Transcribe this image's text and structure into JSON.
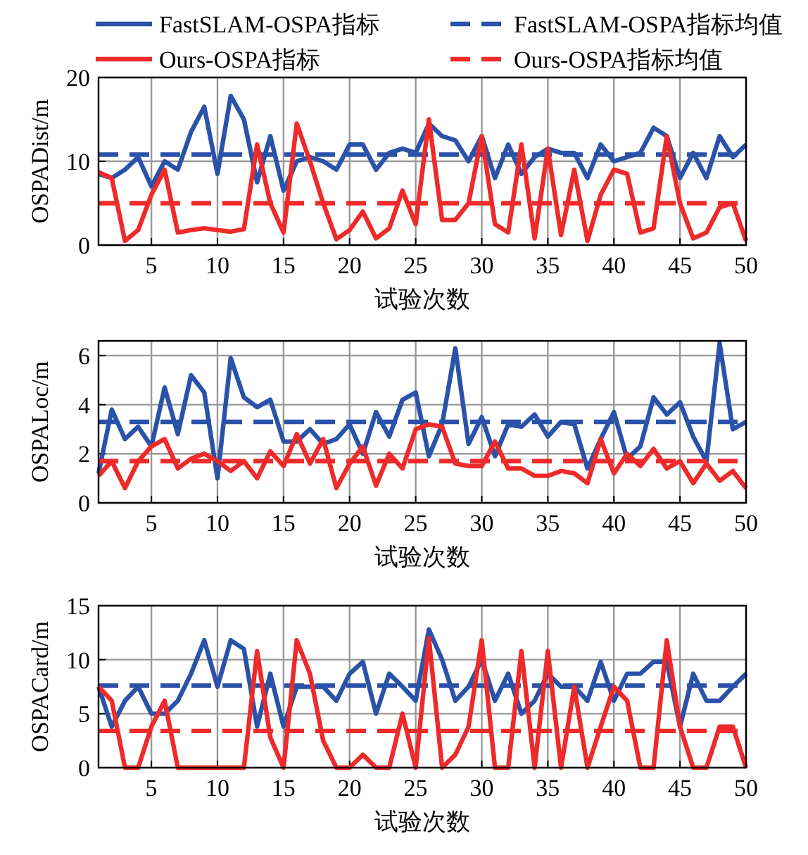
{
  "chart_data": [
    {
      "type": "line",
      "xlabel": "试验次数",
      "ylabel": "OSPADist/m",
      "xlim": [
        1,
        50
      ],
      "xticks": [
        5,
        10,
        15,
        20,
        25,
        30,
        35,
        40,
        45,
        50
      ],
      "ylim": [
        0,
        20
      ],
      "yticks": [
        0,
        10,
        20
      ],
      "grid": true,
      "legend": "top",
      "marker": "none",
      "x": [
        1,
        2,
        3,
        4,
        5,
        6,
        7,
        8,
        9,
        10,
        11,
        12,
        13,
        14,
        15,
        16,
        17,
        18,
        19,
        20,
        21,
        22,
        23,
        24,
        25,
        26,
        27,
        28,
        29,
        30,
        31,
        32,
        33,
        34,
        35,
        36,
        37,
        38,
        39,
        40,
        41,
        42,
        43,
        44,
        45,
        46,
        47,
        48,
        49,
        50
      ],
      "series": [
        {
          "name": "FastSLAM-OSPA指标",
          "color": "#2a52a8",
          "line_style": "solid",
          "values": [
            8.5,
            8,
            9,
            10.5,
            7,
            10,
            9,
            13.5,
            16.5,
            8.5,
            17.8,
            15,
            7.5,
            13,
            6.5,
            10,
            10.5,
            10,
            9,
            12,
            12,
            9,
            11,
            11.5,
            11,
            14.5,
            13,
            12.5,
            10,
            13,
            8,
            12,
            8.5,
            10.5,
            11.5,
            11,
            11,
            8,
            12,
            10,
            10.5,
            11,
            14,
            13,
            8,
            11,
            8,
            13,
            10.5,
            12
          ]
        },
        {
          "name": "FastSLAM-OSPA指标均值",
          "color": "#2a52a8",
          "line_style": "dashed",
          "values": [
            10.8,
            10.8,
            10.8,
            10.8,
            10.8,
            10.8,
            10.8,
            10.8,
            10.8,
            10.8,
            10.8,
            10.8,
            10.8,
            10.8,
            10.8,
            10.8,
            10.8,
            10.8,
            10.8,
            10.8,
            10.8,
            10.8,
            10.8,
            10.8,
            10.8,
            10.8,
            10.8,
            10.8,
            10.8,
            10.8,
            10.8,
            10.8,
            10.8,
            10.8,
            10.8,
            10.8,
            10.8,
            10.8,
            10.8,
            10.8,
            10.8,
            10.8,
            10.8,
            10.8,
            10.8,
            10.8,
            10.8,
            10.8,
            10.8,
            10.8
          ]
        },
        {
          "name": "Ours-OSPA指标",
          "color": "#ee2a2a",
          "line_style": "solid",
          "values": [
            8.7,
            8,
            0.5,
            1.8,
            6,
            9,
            1.5,
            1.8,
            2,
            1.8,
            1.6,
            1.9,
            12,
            5,
            1.5,
            14.5,
            10,
            5,
            0.7,
            1.8,
            4,
            0.8,
            2,
            6.5,
            2.5,
            15,
            3,
            3,
            5,
            13,
            2.5,
            1.5,
            12,
            0.8,
            11.5,
            1.2,
            9,
            0.5,
            6,
            9,
            8.5,
            1.5,
            2,
            13,
            5,
            0.8,
            1.5,
            4.5,
            5,
            0.5
          ]
        },
        {
          "name": "Ours-OSPA指标均值",
          "color": "#ee2a2a",
          "line_style": "dashed",
          "values": [
            5,
            5,
            5,
            5,
            5,
            5,
            5,
            5,
            5,
            5,
            5,
            5,
            5,
            5,
            5,
            5,
            5,
            5,
            5,
            5,
            5,
            5,
            5,
            5,
            5,
            5,
            5,
            5,
            5,
            5,
            5,
            5,
            5,
            5,
            5,
            5,
            5,
            5,
            5,
            5,
            5,
            5,
            5,
            5,
            5,
            5,
            5,
            5,
            5,
            5
          ]
        }
      ]
    },
    {
      "type": "line",
      "xlabel": "试验次数",
      "ylabel": "OSPALoc/m",
      "xlim": [
        1,
        50
      ],
      "xticks": [
        5,
        10,
        15,
        20,
        25,
        30,
        35,
        40,
        45,
        50
      ],
      "ylim": [
        0,
        6.6
      ],
      "yticks": [
        0,
        2,
        4,
        6
      ],
      "grid": true,
      "marker": "none",
      "x": [
        1,
        2,
        3,
        4,
        5,
        6,
        7,
        8,
        9,
        10,
        11,
        12,
        13,
        14,
        15,
        16,
        17,
        18,
        19,
        20,
        21,
        22,
        23,
        24,
        25,
        26,
        27,
        28,
        29,
        30,
        31,
        32,
        33,
        34,
        35,
        36,
        37,
        38,
        39,
        40,
        41,
        42,
        43,
        44,
        45,
        46,
        47,
        48,
        49,
        50
      ],
      "series": [
        {
          "color": "#2a52a8",
          "line_style": "solid",
          "values": [
            1.2,
            3.8,
            2.6,
            3.1,
            2.3,
            4.7,
            2.8,
            5.2,
            4.5,
            1.0,
            5.9,
            4.3,
            3.9,
            4.2,
            2.5,
            2.5,
            3.0,
            2.4,
            2.6,
            3.2,
            2.0,
            3.7,
            2.7,
            4.2,
            4.5,
            1.9,
            3.2,
            6.3,
            2.4,
            3.5,
            1.9,
            3.2,
            3.1,
            3.6,
            2.7,
            3.3,
            3.2,
            1.4,
            2.6,
            3.7,
            1.8,
            2.3,
            4.3,
            3.6,
            4.1,
            2.7,
            1.7,
            6.5,
            3.0,
            3.3
          ]
        },
        {
          "color": "#2a52a8",
          "line_style": "dashed",
          "values": [
            3.3,
            3.3,
            3.3,
            3.3,
            3.3,
            3.3,
            3.3,
            3.3,
            3.3,
            3.3,
            3.3,
            3.3,
            3.3,
            3.3,
            3.3,
            3.3,
            3.3,
            3.3,
            3.3,
            3.3,
            3.3,
            3.3,
            3.3,
            3.3,
            3.3,
            3.3,
            3.3,
            3.3,
            3.3,
            3.3,
            3.3,
            3.3,
            3.3,
            3.3,
            3.3,
            3.3,
            3.3,
            3.3,
            3.3,
            3.3,
            3.3,
            3.3,
            3.3,
            3.3,
            3.3,
            3.3,
            3.3,
            3.3,
            3.3,
            3.3
          ]
        },
        {
          "color": "#ee2a2a",
          "line_style": "solid",
          "values": [
            1.1,
            1.7,
            0.6,
            1.7,
            2.3,
            2.6,
            1.4,
            1.8,
            2.0,
            1.7,
            1.3,
            1.7,
            1.0,
            2.1,
            1.5,
            2.8,
            1.6,
            2.6,
            0.6,
            1.6,
            2.3,
            0.7,
            2.0,
            1.4,
            3.0,
            3.2,
            3.1,
            1.6,
            1.5,
            1.5,
            2.5,
            1.4,
            1.4,
            1.1,
            1.1,
            1.3,
            1.2,
            0.8,
            2.6,
            1.2,
            2.0,
            1.5,
            2.2,
            1.4,
            1.7,
            0.8,
            1.6,
            0.9,
            1.3,
            0.6
          ]
        },
        {
          "color": "#ee2a2a",
          "line_style": "dashed",
          "values": [
            1.7,
            1.7,
            1.7,
            1.7,
            1.7,
            1.7,
            1.7,
            1.7,
            1.7,
            1.7,
            1.7,
            1.7,
            1.7,
            1.7,
            1.7,
            1.7,
            1.7,
            1.7,
            1.7,
            1.7,
            1.7,
            1.7,
            1.7,
            1.7,
            1.7,
            1.7,
            1.7,
            1.7,
            1.7,
            1.7,
            1.7,
            1.7,
            1.7,
            1.7,
            1.7,
            1.7,
            1.7,
            1.7,
            1.7,
            1.7,
            1.7,
            1.7,
            1.7,
            1.7,
            1.7,
            1.7,
            1.7,
            1.7,
            1.7,
            1.7
          ]
        }
      ]
    },
    {
      "type": "line",
      "xlabel": "试验次数",
      "ylabel": "OSPACard/m",
      "xlim": [
        1,
        50
      ],
      "xticks": [
        5,
        10,
        15,
        20,
        25,
        30,
        35,
        40,
        45,
        50
      ],
      "ylim": [
        0,
        15
      ],
      "yticks": [
        0,
        5,
        10,
        15
      ],
      "grid": true,
      "marker": "none",
      "x": [
        1,
        2,
        3,
        4,
        5,
        6,
        7,
        8,
        9,
        10,
        11,
        12,
        13,
        14,
        15,
        16,
        17,
        18,
        19,
        20,
        21,
        22,
        23,
        24,
        25,
        26,
        27,
        28,
        29,
        30,
        31,
        32,
        33,
        34,
        35,
        36,
        37,
        38,
        39,
        40,
        41,
        42,
        43,
        44,
        45,
        46,
        47,
        48,
        49,
        50
      ],
      "series": [
        {
          "color": "#2a52a8",
          "line_style": "solid",
          "values": [
            7.5,
            3.8,
            6.2,
            7.5,
            5,
            5,
            6.2,
            8.7,
            11.8,
            7.5,
            11.8,
            11,
            3.8,
            8.7,
            3.8,
            7.5,
            7.5,
            7.5,
            6.2,
            8.7,
            9.8,
            5,
            8.7,
            7.5,
            6.2,
            12.8,
            10,
            6.2,
            7.5,
            10,
            6.2,
            8.7,
            5,
            6.2,
            8.7,
            7.5,
            7.5,
            6.2,
            9.8,
            6.2,
            8.7,
            8.7,
            9.8,
            9.8,
            3.8,
            8.7,
            6.2,
            6.2,
            7.5,
            8.7
          ]
        },
        {
          "color": "#2a52a8",
          "line_style": "dashed",
          "values": [
            7.6,
            7.6,
            7.6,
            7.6,
            7.6,
            7.6,
            7.6,
            7.6,
            7.6,
            7.6,
            7.6,
            7.6,
            7.6,
            7.6,
            7.6,
            7.6,
            7.6,
            7.6,
            7.6,
            7.6,
            7.6,
            7.6,
            7.6,
            7.6,
            7.6,
            7.6,
            7.6,
            7.6,
            7.6,
            7.6,
            7.6,
            7.6,
            7.6,
            7.6,
            7.6,
            7.6,
            7.6,
            7.6,
            7.6,
            7.6,
            7.6,
            7.6,
            7.6,
            7.6,
            7.6,
            7.6,
            7.6,
            7.6,
            7.6,
            7.6
          ]
        },
        {
          "color": "#ee2a2a",
          "line_style": "solid",
          "values": [
            7.5,
            6.2,
            0,
            0,
            3.8,
            6.2,
            0,
            0,
            0,
            0,
            0,
            0,
            10.8,
            2.8,
            0,
            11.8,
            8.7,
            2.5,
            0,
            0,
            1.2,
            0,
            0,
            5,
            0,
            12,
            0,
            1.2,
            3.8,
            11.8,
            0,
            0,
            10.8,
            0,
            10.8,
            0,
            7.5,
            0,
            3.8,
            7.5,
            6.2,
            0,
            0,
            11.8,
            3.8,
            0,
            0,
            3.8,
            3.8,
            0
          ]
        },
        {
          "color": "#ee2a2a",
          "line_style": "dashed",
          "values": [
            3.4,
            3.4,
            3.4,
            3.4,
            3.4,
            3.4,
            3.4,
            3.4,
            3.4,
            3.4,
            3.4,
            3.4,
            3.4,
            3.4,
            3.4,
            3.4,
            3.4,
            3.4,
            3.4,
            3.4,
            3.4,
            3.4,
            3.4,
            3.4,
            3.4,
            3.4,
            3.4,
            3.4,
            3.4,
            3.4,
            3.4,
            3.4,
            3.4,
            3.4,
            3.4,
            3.4,
            3.4,
            3.4,
            3.4,
            3.4,
            3.4,
            3.4,
            3.4,
            3.4,
            3.4,
            3.4,
            3.4,
            3.4,
            3.4,
            3.4
          ]
        }
      ]
    }
  ]
}
